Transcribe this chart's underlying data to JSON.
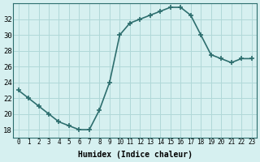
{
  "x": [
    0,
    1,
    2,
    3,
    4,
    5,
    6,
    7,
    8,
    9,
    10,
    11,
    12,
    13,
    14,
    15,
    16,
    17,
    18,
    19,
    20,
    21,
    22,
    23
  ],
  "y": [
    23,
    22,
    21,
    20,
    19,
    18.5,
    18,
    18,
    20.5,
    24,
    30,
    31.5,
    32,
    32.5,
    33,
    33.5,
    33.5,
    32.5,
    30,
    27.5,
    27,
    26.5,
    27,
    27
  ],
  "line_color": "#2d6e6e",
  "marker_color": "#2d6e6e",
  "bg_color": "#d6f0f0",
  "grid_color": "#b0d8d8",
  "xlabel": "Humidex (Indice chaleur)",
  "ylim": [
    17,
    34
  ],
  "xlim": [
    -0.5,
    23.5
  ],
  "yticks": [
    18,
    20,
    22,
    24,
    26,
    28,
    30,
    32
  ],
  "xticks": [
    0,
    1,
    2,
    3,
    4,
    5,
    6,
    7,
    8,
    9,
    10,
    11,
    12,
    13,
    14,
    15,
    16,
    17,
    18,
    19,
    20,
    21,
    22,
    23
  ],
  "xtick_labels": [
    "0",
    "1",
    "2",
    "3",
    "4",
    "5",
    "6",
    "7",
    "8",
    "9",
    "10",
    "11",
    "12",
    "13",
    "14",
    "15",
    "16",
    "17",
    "18",
    "19",
    "20",
    "21",
    "22",
    "23"
  ]
}
